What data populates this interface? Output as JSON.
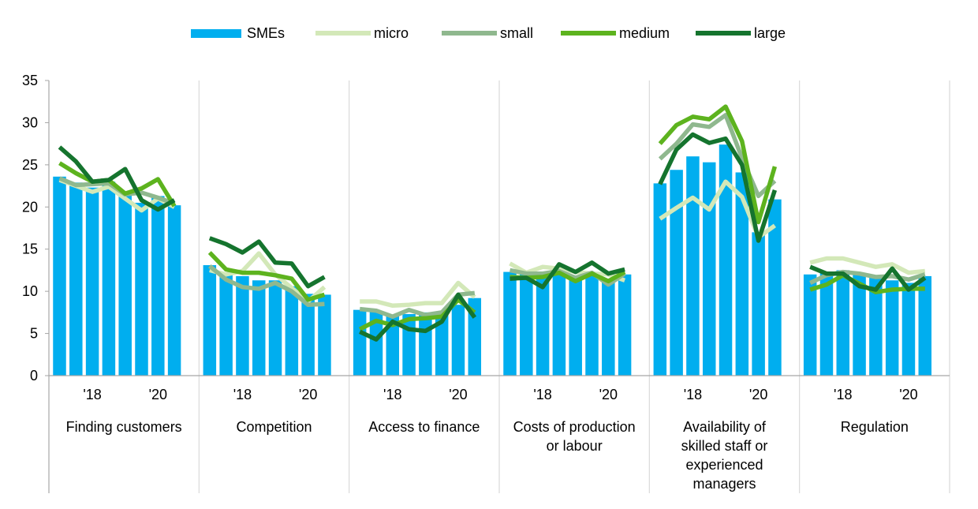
{
  "colors": {
    "SMEs": "#00AEEF",
    "micro": "#D3E8B8",
    "small": "#8FB88E",
    "medium": "#5DB31E",
    "large": "#15742E",
    "grid": "#D9D9D9",
    "axis": "#A6A6A6"
  },
  "chart_data": {
    "type": "bar",
    "ylim": [
      0,
      35
    ],
    "yticks": [
      0,
      5,
      10,
      15,
      20,
      25,
      30,
      35
    ],
    "grid": "vertical separators between groups",
    "legend_position": "top-center",
    "periods_per_group": 8,
    "tick_labels": [
      "'18",
      "'20"
    ],
    "legend": [
      {
        "name": "SMEs",
        "style": "bar"
      },
      {
        "name": "micro",
        "style": "line"
      },
      {
        "name": "small",
        "style": "line"
      },
      {
        "name": "medium",
        "style": "line"
      },
      {
        "name": "large",
        "style": "line"
      }
    ],
    "groups": [
      {
        "label": [
          "Finding customers"
        ],
        "SMEs": [
          23.6,
          22.9,
          22.3,
          23.0,
          21.8,
          20.5,
          21.3,
          20.2
        ],
        "micro": [
          23.2,
          22.5,
          21.8,
          22.4,
          21.0,
          19.6,
          21.0,
          20.0
        ],
        "small": [
          23.4,
          22.6,
          22.7,
          22.8,
          21.5,
          21.7,
          21.1,
          20.4
        ],
        "medium": [
          25.2,
          24.0,
          23.0,
          23.2,
          21.6,
          22.2,
          23.3,
          20.1
        ],
        "large": [
          27.1,
          25.4,
          23.0,
          23.2,
          24.5,
          20.8,
          19.7,
          20.8
        ]
      },
      {
        "label": [
          "Competition"
        ],
        "SMEs": [
          13.1,
          12.2,
          11.8,
          11.3,
          11.3,
          10.6,
          9.7,
          9.6
        ],
        "micro": [
          12.5,
          12.0,
          12.4,
          14.5,
          12.0,
          10.4,
          8.8,
          10.5
        ],
        "small": [
          13.0,
          11.4,
          10.5,
          10.3,
          11.0,
          10.0,
          8.4,
          8.5
        ],
        "medium": [
          14.6,
          12.6,
          12.2,
          12.2,
          11.9,
          11.5,
          9.0,
          9.6
        ],
        "large": [
          16.3,
          15.6,
          14.6,
          15.9,
          13.4,
          13.3,
          10.6,
          11.7
        ]
      },
      {
        "label": [
          "Access to finance"
        ],
        "SMEs": [
          7.8,
          7.6,
          7.1,
          7.3,
          7.5,
          7.5,
          8.4,
          9.2
        ],
        "micro": [
          8.8,
          8.8,
          8.3,
          8.4,
          8.6,
          8.6,
          11.0,
          9.3
        ],
        "small": [
          7.9,
          7.7,
          7.0,
          7.8,
          7.2,
          7.5,
          9.6,
          9.8
        ],
        "medium": [
          5.5,
          6.5,
          6.0,
          6.7,
          6.8,
          7.0,
          9.0,
          7.5
        ],
        "large": [
          5.2,
          4.3,
          6.4,
          5.5,
          5.3,
          6.4,
          9.6,
          6.9
        ]
      },
      {
        "label": [
          "Costs of production",
          "or labour"
        ],
        "SMEs": [
          12.3,
          12.2,
          12.3,
          12.4,
          11.8,
          12.2,
          11.5,
          12.0
        ],
        "micro": [
          13.3,
          12.2,
          12.9,
          12.7,
          12.3,
          12.1,
          12.0,
          11.3
        ],
        "small": [
          12.5,
          12.1,
          12.1,
          12.4,
          11.6,
          12.2,
          10.8,
          12.1
        ],
        "medium": [
          11.7,
          11.6,
          11.7,
          12.2,
          11.2,
          12.1,
          11.2,
          12.3
        ],
        "large": [
          11.5,
          11.6,
          10.5,
          13.2,
          12.3,
          13.4,
          12.1,
          12.6
        ]
      },
      {
        "label": [
          "Availability of",
          "skilled staff or",
          "experienced",
          "managers"
        ],
        "SMEs": [
          22.8,
          24.4,
          26.0,
          25.3,
          27.4,
          24.1,
          17.0,
          20.9
        ],
        "micro": [
          18.6,
          19.9,
          21.1,
          19.7,
          23.0,
          21.2,
          16.4,
          17.8
        ],
        "small": [
          25.7,
          27.5,
          29.8,
          29.5,
          30.9,
          25.8,
          21.3,
          23.1
        ],
        "medium": [
          27.5,
          29.7,
          30.7,
          30.4,
          31.9,
          27.8,
          18.2,
          24.8
        ],
        "large": [
          22.7,
          26.8,
          28.6,
          27.6,
          28.1,
          25.0,
          16.0,
          22.0
        ]
      },
      {
        "label": [
          "Regulation"
        ],
        "SMEs": [
          12.0,
          12.3,
          12.5,
          12.2,
          11.6,
          11.3,
          11.0,
          11.8
        ],
        "micro": [
          13.4,
          13.9,
          13.9,
          13.4,
          12.9,
          13.2,
          12.2,
          12.4
        ],
        "small": [
          11.0,
          11.9,
          12.3,
          12.1,
          11.7,
          11.8,
          11.4,
          12.0
        ],
        "medium": [
          10.2,
          10.8,
          11.9,
          10.9,
          9.9,
          10.2,
          10.3,
          10.3
        ],
        "large": [
          12.9,
          12.1,
          12.1,
          10.6,
          10.2,
          12.7,
          10.2,
          11.6
        ]
      }
    ]
  }
}
